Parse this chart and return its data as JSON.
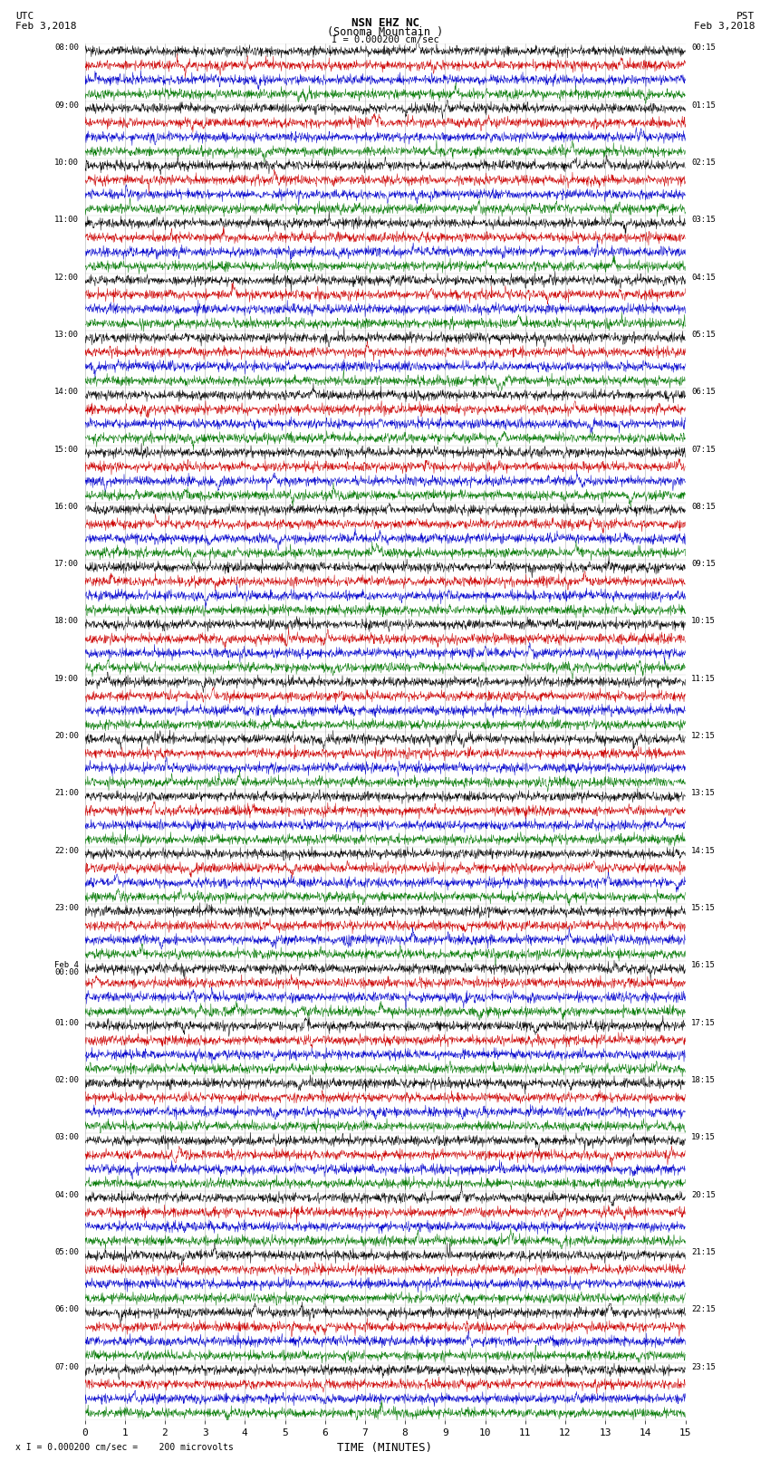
{
  "title_line1": "NSN EHZ NC",
  "title_line2": "(Sonoma Mountain )",
  "scale_label": "I = 0.000200 cm/sec",
  "footer_label": "x I = 0.000200 cm/sec =    200 microvolts",
  "xlabel": "TIME (MINUTES)",
  "utc_label": "UTC",
  "pst_label": "PST",
  "date_left": "Feb 3,2018",
  "date_right": "Feb 3,2018",
  "bg_color": "#ffffff",
  "trace_colors": [
    "#000000",
    "#cc0000",
    "#0000cc",
    "#007700"
  ],
  "grid_color": "#888888",
  "text_color": "#000000",
  "xmin": 0,
  "xmax": 15,
  "xticks": [
    0,
    1,
    2,
    3,
    4,
    5,
    6,
    7,
    8,
    9,
    10,
    11,
    12,
    13,
    14,
    15
  ],
  "num_rows": 24,
  "traces_per_row": 4,
  "left_times": [
    "08:00",
    "09:00",
    "10:00",
    "11:00",
    "12:00",
    "13:00",
    "14:00",
    "15:00",
    "16:00",
    "17:00",
    "18:00",
    "19:00",
    "20:00",
    "21:00",
    "22:00",
    "23:00",
    "Feb 4\n00:00",
    "01:00",
    "02:00",
    "03:00",
    "04:00",
    "05:00",
    "06:00",
    "07:00"
  ],
  "right_times": [
    "00:15",
    "01:15",
    "02:15",
    "03:15",
    "04:15",
    "05:15",
    "06:15",
    "07:15",
    "08:15",
    "09:15",
    "10:15",
    "11:15",
    "12:15",
    "13:15",
    "14:15",
    "15:15",
    "16:15",
    "17:15",
    "18:15",
    "19:15",
    "20:15",
    "21:15",
    "22:15",
    "23:15"
  ]
}
